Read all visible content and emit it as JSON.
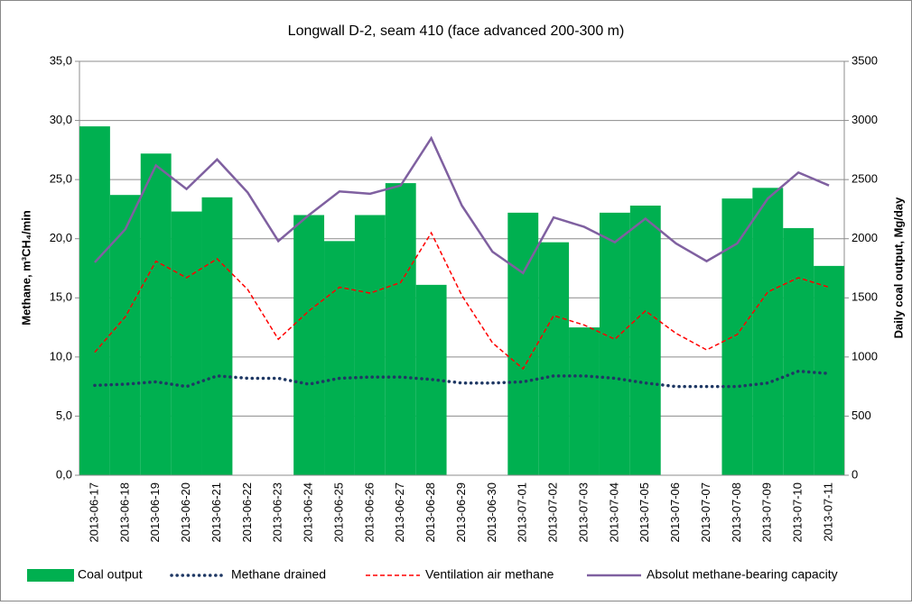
{
  "chart_data": {
    "type": "bar-line",
    "title": "Longwall D-2, seam 410 (face advanced 200-300 m)",
    "y_label": "Methane, m³CH₄/min",
    "y2_label": "Daily coal output, Mg/day",
    "categories": [
      "2013-06-17",
      "2013-06-18",
      "2013-06-19",
      "2013-06-20",
      "2013-06-21",
      "2013-06-22",
      "2013-06-23",
      "2013-06-24",
      "2013-06-25",
      "2013-06-26",
      "2013-06-27",
      "2013-06-28",
      "2013-06-29",
      "2013-06-30",
      "2013-07-01",
      "2013-07-02",
      "2013-07-03",
      "2013-07-04",
      "2013-07-05",
      "2013-07-06",
      "2013-07-07",
      "2013-07-08",
      "2013-07-09",
      "2013-07-10",
      "2013-07-11"
    ],
    "series": [
      {
        "name": "Coal output",
        "kind": "bar",
        "axis": "y2",
        "color": "#00b050",
        "values": [
          2950,
          2370,
          2720,
          2230,
          2350,
          0,
          0,
          2200,
          1980,
          2200,
          2470,
          1610,
          0,
          0,
          2220,
          1970,
          1250,
          2220,
          2280,
          0,
          0,
          2340,
          2430,
          2090,
          1770
        ]
      },
      {
        "name": "Methane drained",
        "kind": "line",
        "style": "dotted",
        "color": "#1f3864",
        "values": [
          7.6,
          7.7,
          7.9,
          7.5,
          8.4,
          8.2,
          8.2,
          7.7,
          8.2,
          8.3,
          8.3,
          8.1,
          7.8,
          7.8,
          7.9,
          8.4,
          8.4,
          8.2,
          7.8,
          7.5,
          7.5,
          7.5,
          7.8,
          8.8,
          8.6
        ]
      },
      {
        "name": "Ventilation air methane",
        "kind": "line",
        "style": "dashed",
        "color": "#ff0000",
        "values": [
          10.4,
          13.4,
          18.1,
          16.7,
          18.3,
          15.7,
          11.5,
          13.9,
          15.9,
          15.4,
          16.3,
          20.5,
          15.2,
          11.2,
          9.0,
          13.5,
          12.7,
          11.5,
          13.9,
          12.0,
          10.6,
          11.9,
          15.5,
          16.7,
          15.9
        ]
      },
      {
        "name": "Absolut methane-bearing capacity",
        "kind": "line",
        "style": "solid",
        "color": "#7f60a0",
        "values": [
          18.0,
          20.8,
          26.2,
          24.2,
          26.7,
          23.9,
          19.8,
          22.0,
          24.0,
          23.8,
          24.5,
          28.5,
          22.8,
          18.9,
          17.1,
          21.8,
          21.0,
          19.7,
          21.7,
          19.6,
          18.1,
          19.6,
          23.4,
          25.6,
          24.5
        ]
      }
    ],
    "ylim": [
      0,
      35
    ],
    "yticks": [
      {
        "value": 0,
        "label": "0,0"
      },
      {
        "value": 5,
        "label": "5,0"
      },
      {
        "value": 10,
        "label": "10,0"
      },
      {
        "value": 15,
        "label": "15,0"
      },
      {
        "value": 20,
        "label": "20,0"
      },
      {
        "value": 25,
        "label": "25,0"
      },
      {
        "value": 30,
        "label": "30,0"
      },
      {
        "value": 35,
        "label": "35,0"
      }
    ],
    "y2lim": [
      0,
      3500
    ],
    "y2ticks": [
      0,
      500,
      1000,
      1500,
      2000,
      2500,
      3000,
      3500
    ],
    "grid": true,
    "legend": "bottom"
  }
}
